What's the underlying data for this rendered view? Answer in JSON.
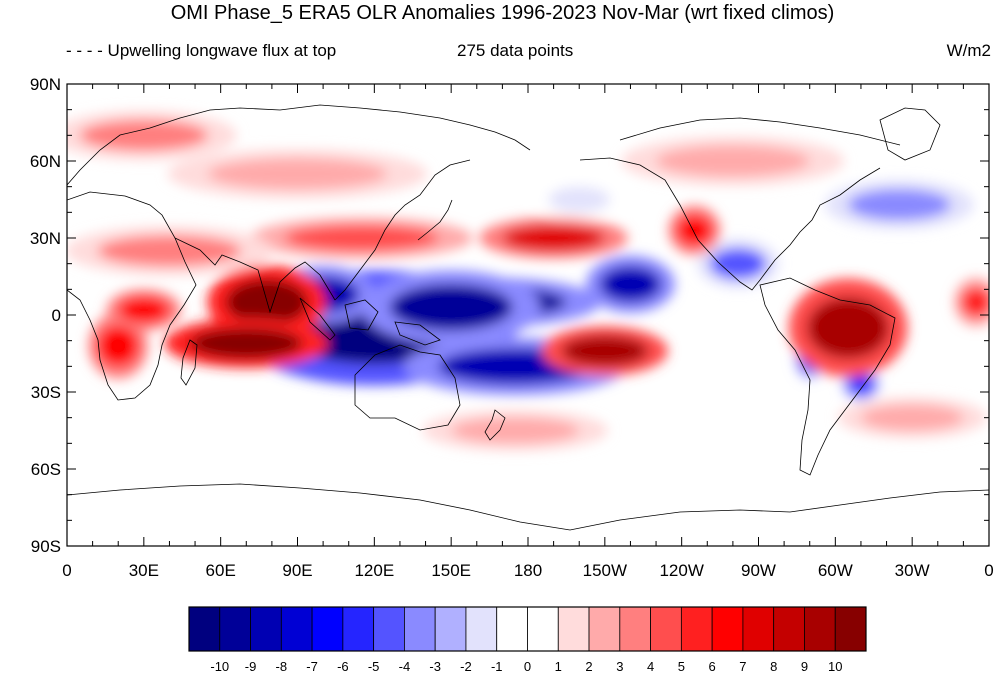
{
  "title": "OMI Phase_5 ERA5 OLR Anomalies 1996-2023 Nov-Mar (wrt fixed climos)",
  "subtitle_left": "- - - - Upwelling longwave flux at top",
  "subtitle_center": "275 data points",
  "subtitle_right": "W/m2",
  "map": {
    "projection": "cylindrical-equidistant",
    "lon_range": [
      0,
      360
    ],
    "lat_range": [
      -90,
      90
    ],
    "lat_ticks": [
      {
        "value": 90,
        "label": "90N"
      },
      {
        "value": 60,
        "label": "60N"
      },
      {
        "value": 30,
        "label": "30N"
      },
      {
        "value": 0,
        "label": "0"
      },
      {
        "value": -30,
        "label": "30S"
      },
      {
        "value": -60,
        "label": "60S"
      },
      {
        "value": -90,
        "label": "90S"
      }
    ],
    "lon_ticks": [
      {
        "value": 0,
        "label": "0"
      },
      {
        "value": 30,
        "label": "30E"
      },
      {
        "value": 60,
        "label": "60E"
      },
      {
        "value": 90,
        "label": "90E"
      },
      {
        "value": 120,
        "label": "120E"
      },
      {
        "value": 150,
        "label": "150E"
      },
      {
        "value": 180,
        "label": "180"
      },
      {
        "value": 210,
        "label": "150W"
      },
      {
        "value": 240,
        "label": "120W"
      },
      {
        "value": 270,
        "label": "90W"
      },
      {
        "value": 300,
        "label": "60W"
      },
      {
        "value": 330,
        "label": "30W"
      },
      {
        "value": 360,
        "label": "0"
      }
    ],
    "anomaly_features": [
      {
        "lon": 120,
        "lat": -5,
        "rlon": 38,
        "rlat": 14,
        "value": -11
      },
      {
        "lon": 165,
        "lat": 5,
        "rlon": 30,
        "rlat": 6,
        "value": -10
      },
      {
        "lon": 175,
        "lat": -20,
        "rlon": 30,
        "rlat": 7,
        "value": -9
      },
      {
        "lon": 150,
        "lat": 3,
        "rlon": 24,
        "rlat": 9,
        "value": -10
      },
      {
        "lon": 100,
        "lat": 8,
        "rlon": 14,
        "rlat": 7,
        "value": -9
      },
      {
        "lon": 220,
        "lat": 12,
        "rlon": 12,
        "rlat": 7,
        "value": -9
      },
      {
        "lon": 262,
        "lat": 20,
        "rlon": 11,
        "rlat": 6,
        "value": -5
      },
      {
        "lon": 290,
        "lat": -17,
        "rlon": 4,
        "rlat": 5,
        "value": -6
      },
      {
        "lon": 310,
        "lat": -27,
        "rlon": 5,
        "rlat": 4,
        "value": -6
      },
      {
        "lon": 325,
        "lat": 43,
        "rlon": 20,
        "rlat": 6,
        "value": -4
      },
      {
        "lon": 200,
        "lat": 45,
        "rlon": 12,
        "rlat": 5,
        "value": -2
      },
      {
        "lon": 50,
        "lat": -50,
        "rlon": 20,
        "rlat": 5,
        "value": -1
      },
      {
        "lon": 78,
        "lat": 5,
        "rlon": 16,
        "rlat": 9,
        "value": 10
      },
      {
        "lon": 70,
        "lat": -11,
        "rlon": 22,
        "rlat": 6,
        "value": 10
      },
      {
        "lon": 20,
        "lat": -12,
        "rlon": 8,
        "rlat": 8,
        "value": 6
      },
      {
        "lon": 30,
        "lat": 2,
        "rlon": 10,
        "rlat": 5,
        "value": 6
      },
      {
        "lon": 210,
        "lat": -14,
        "rlon": 17,
        "rlat": 6,
        "value": 9
      },
      {
        "lon": 190,
        "lat": 30,
        "rlon": 20,
        "rlat": 5,
        "value": 7
      },
      {
        "lon": 245,
        "lat": 33,
        "rlon": 7,
        "rlat": 6,
        "value": 6
      },
      {
        "lon": 305,
        "lat": -5,
        "rlon": 16,
        "rlat": 12,
        "value": 9
      },
      {
        "lon": 115,
        "lat": 30,
        "rlon": 30,
        "rlat": 5,
        "value": 4
      },
      {
        "lon": 40,
        "lat": 25,
        "rlon": 28,
        "rlat": 6,
        "value": 3
      },
      {
        "lon": 355,
        "lat": 5,
        "rlon": 6,
        "rlat": 6,
        "value": 5
      },
      {
        "lon": 90,
        "lat": 55,
        "rlon": 35,
        "rlat": 6,
        "value": 2
      },
      {
        "lon": 30,
        "lat": 70,
        "rlon": 25,
        "rlat": 6,
        "value": 3
      },
      {
        "lon": 260,
        "lat": 60,
        "rlon": 30,
        "rlat": 6,
        "value": 2
      },
      {
        "lon": 175,
        "lat": -45,
        "rlon": 25,
        "rlat": 5,
        "value": 2
      },
      {
        "lon": 330,
        "lat": -40,
        "rlon": 20,
        "rlat": 5,
        "value": 2
      }
    ]
  },
  "colorbar": {
    "colors": [
      "#00007f",
      "#000098",
      "#0000b3",
      "#0000d4",
      "#0000ff",
      "#2525ff",
      "#5454ff",
      "#8a8aff",
      "#b0b0ff",
      "#e2e2fc",
      "#ffffff",
      "#ffffff",
      "#ffdcdc",
      "#ffaaaa",
      "#ff7f7f",
      "#ff4e4e",
      "#ff2020",
      "#ff0000",
      "#e00000",
      "#c40000",
      "#a80000",
      "#870000"
    ],
    "labels": [
      "-10",
      "-9",
      "-8",
      "-7",
      "-6",
      "-5",
      "-4",
      "-3",
      "-2",
      "-1",
      "0",
      "1",
      "2",
      "3",
      "4",
      "5",
      "6",
      "7",
      "8",
      "9",
      "10"
    ]
  }
}
